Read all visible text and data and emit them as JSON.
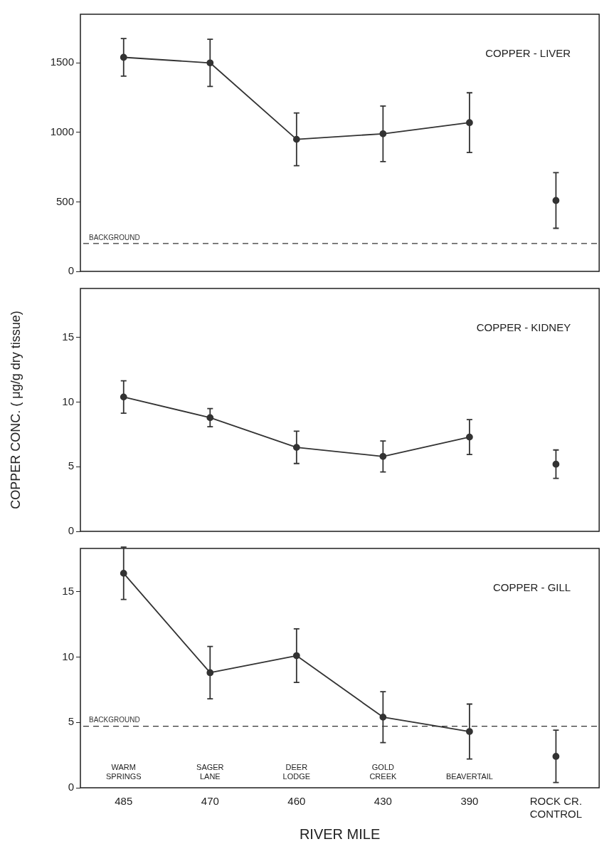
{
  "chart_data": [
    {
      "type": "line",
      "title": "COPPER - LIVER",
      "categories": [
        null,
        null,
        null,
        null,
        null,
        null
      ],
      "series": [
        {
          "color": "#333333",
          "values": [
            1540,
            1500,
            950,
            990,
            1070,
            null
          ],
          "errors": [
            135,
            170,
            190,
            200,
            215,
            null
          ]
        },
        {
          "type": "scatter",
          "color": "#333333",
          "values": [
            null,
            null,
            null,
            null,
            null,
            510
          ],
          "errors": [
            null,
            null,
            null,
            null,
            null,
            200
          ]
        }
      ],
      "ylim": [
        0,
        1850
      ],
      "yticks": [
        0,
        500,
        1000,
        1500
      ],
      "grid": false,
      "marker": "circle",
      "tick_labels": "y",
      "ref_lines": [
        {
          "axis": "y",
          "value": 200,
          "label": "BACKGROUND",
          "line_style": "dashed"
        }
      ]
    },
    {
      "type": "line",
      "title": "COPPER - KIDNEY",
      "ylabel": "COPPER CONC. ( μg/g dry tissue)",
      "categories": [
        null,
        null,
        null,
        null,
        null,
        null
      ],
      "series": [
        {
          "color": "#333333",
          "values": [
            10.4,
            8.8,
            6.5,
            5.8,
            7.3,
            null
          ],
          "errors": [
            1.25,
            0.7,
            1.25,
            1.2,
            1.35,
            null
          ]
        },
        {
          "type": "scatter",
          "color": "#333333",
          "values": [
            null,
            null,
            null,
            null,
            null,
            5.2
          ],
          "errors": [
            null,
            null,
            null,
            null,
            null,
            1.1
          ]
        }
      ],
      "ylim": [
        0,
        18.8
      ],
      "yticks": [
        0,
        5,
        10,
        15
      ],
      "grid": false,
      "marker": "circle",
      "tick_labels": "y"
    },
    {
      "type": "line",
      "title": "COPPER - GILL",
      "xlabel": "RIVER MILE",
      "categories": [
        "485",
        "470",
        "460",
        "430",
        "390",
        "ROCK CR.\nCONTROL"
      ],
      "series": [
        {
          "color": "#333333",
          "values": [
            16.4,
            8.8,
            10.1,
            5.4,
            4.3,
            null
          ],
          "errors": [
            2,
            2,
            2.05,
            1.95,
            2.1,
            null
          ]
        },
        {
          "type": "scatter",
          "color": "#333333",
          "values": [
            null,
            null,
            null,
            null,
            null,
            2.4
          ],
          "errors": [
            null,
            null,
            null,
            null,
            null,
            2
          ]
        }
      ],
      "ylim": [
        0,
        18.3
      ],
      "yticks": [
        0,
        5,
        10,
        15
      ],
      "grid": false,
      "marker": "circle",
      "ref_lines": [
        {
          "axis": "y",
          "value": 4.7,
          "label": "BACKGROUND",
          "line_style": "dashed"
        }
      ],
      "annotations": [
        "WARM\nSPRINGS",
        "SAGER\nLANE",
        "DEER\nLODGE",
        "GOLD\nCREEK",
        "BEAVERTAIL"
      ]
    }
  ]
}
